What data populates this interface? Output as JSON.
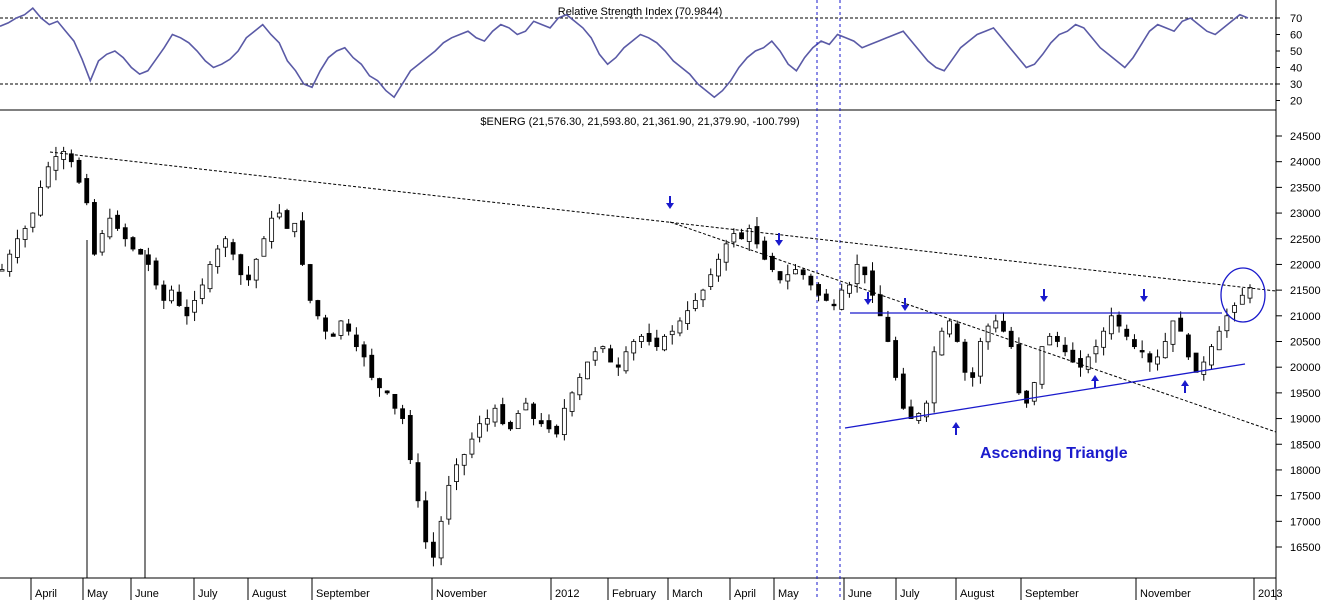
{
  "chart_data": [
    {
      "type": "line",
      "title": "Relative Strength Index (70.9844)",
      "ylim": [
        15,
        80
      ],
      "yticks": [
        "70",
        "60",
        "50",
        "40",
        "30",
        "20"
      ],
      "reference_lines": [
        70,
        30
      ],
      "series": [
        {
          "values": [
            65,
            67,
            70,
            72,
            76,
            70,
            66,
            68,
            62,
            56,
            45,
            32,
            44,
            48,
            50,
            46,
            40,
            36,
            38,
            45,
            52,
            60,
            58,
            55,
            50,
            44,
            40,
            42,
            45,
            50,
            58,
            62,
            66,
            60,
            55,
            44,
            38,
            30,
            28,
            38,
            46,
            50,
            52,
            46,
            42,
            35,
            32,
            26,
            22,
            30,
            38,
            42,
            46,
            50,
            55,
            58,
            60,
            62,
            58,
            56,
            62,
            66,
            64,
            60,
            62,
            68,
            66,
            64,
            70,
            72,
            68,
            64,
            58,
            48,
            42,
            46,
            52,
            56,
            60,
            58,
            55,
            50,
            44,
            40,
            36,
            30,
            26,
            22,
            26,
            32,
            40,
            46,
            50,
            52,
            56,
            50,
            42,
            38,
            46,
            52,
            56,
            54,
            60,
            58,
            56,
            52,
            54,
            56,
            58,
            60,
            62,
            56,
            50,
            44,
            40,
            38,
            45,
            52,
            56,
            60,
            62,
            64,
            58,
            52,
            46,
            40,
            42,
            48,
            55,
            60,
            62,
            66,
            64,
            58,
            52,
            48,
            44,
            40,
            46,
            54,
            62,
            66,
            64,
            62,
            68,
            70,
            66,
            62,
            60,
            64,
            68,
            72,
            70
          ]
        }
      ]
    },
    {
      "type": "line",
      "title": "$ENERG (21,576.30, 21,593.80, 21,361.90, 21,379.90, -100.799)",
      "ylim": [
        16000,
        24800
      ],
      "yticks": [
        "24500",
        "24000",
        "23500",
        "23000",
        "22500",
        "22000",
        "21500",
        "21000",
        "20500",
        "20000",
        "19500",
        "19000",
        "18500",
        "18000",
        "17500",
        "17000",
        "16500"
      ],
      "x_labels": [
        "April",
        "May",
        "June",
        "July",
        "August",
        "September",
        "November",
        "2012",
        "February",
        "March",
        "April",
        "May",
        "June",
        "July",
        "August",
        "September",
        "November",
        "2013"
      ],
      "annotations": [
        "Ascending Triangle"
      ],
      "series": [
        {
          "values": [
            21900,
            22200,
            22500,
            22700,
            23000,
            23500,
            23900,
            24100,
            24200,
            24000,
            23600,
            23200,
            22200,
            22600,
            22900,
            22700,
            22500,
            22300,
            22200,
            22000,
            21600,
            21300,
            21500,
            21200,
            21000,
            21300,
            21600,
            22000,
            22300,
            22500,
            22200,
            21800,
            21700,
            22100,
            22500,
            22900,
            23000,
            22700,
            22800,
            22000,
            21300,
            21000,
            20700,
            20600,
            20900,
            20700,
            20400,
            20200,
            19800,
            19600,
            19500,
            19200,
            19000,
            18200,
            17400,
            16600,
            16300,
            17000,
            17700,
            18100,
            18300,
            18600,
            18900,
            19000,
            19200,
            18900,
            18800,
            19100,
            19300,
            19000,
            18900,
            18800,
            18700,
            19200,
            19500,
            19800,
            20100,
            20300,
            20400,
            20100,
            20000,
            20300,
            20500,
            20600,
            20500,
            20400,
            20600,
            20700,
            20900,
            21100,
            21300,
            21500,
            21800,
            22100,
            22400,
            22600,
            22500,
            22700,
            22400,
            22100,
            21900,
            21700,
            21800,
            21900,
            21800,
            21600,
            21400,
            21300,
            21200,
            21500,
            21600,
            22000,
            21800,
            21400,
            21000,
            20500,
            19800,
            19200,
            19000,
            19100,
            19300,
            20300,
            20700,
            20900,
            20500,
            19900,
            19800,
            20500,
            20800,
            20900,
            20700,
            20400,
            19500,
            19300,
            19700,
            20400,
            20600,
            20500,
            20300,
            20100,
            20000,
            20200,
            20400,
            20700,
            21000,
            20800,
            20600,
            20400,
            20300,
            20100,
            20200,
            20500,
            20900,
            20700,
            20200,
            19900,
            20100,
            20400,
            20700,
            21000,
            21200,
            21400,
            21550
          ]
        }
      ]
    }
  ]
}
